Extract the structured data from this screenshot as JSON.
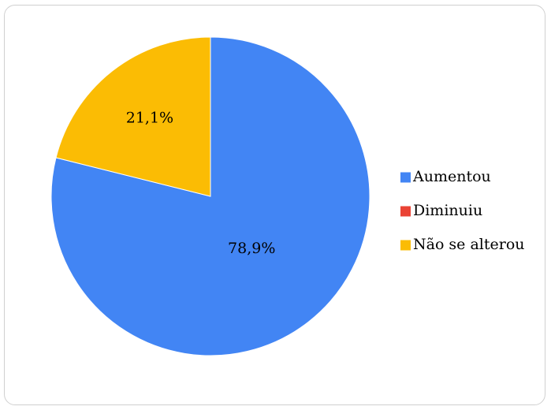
{
  "chart_data": {
    "type": "pie",
    "title": "",
    "start_angle_deg": 0,
    "direction": "clockwise",
    "legend_position": "right",
    "data_labels_shown": true,
    "slices": [
      {
        "label": "Aumentou",
        "value": 78.9,
        "display": "78,9%",
        "color": "#4285F4"
      },
      {
        "label": "Diminuiu",
        "value": 0,
        "display": "",
        "color": "#EA4335"
      },
      {
        "label": "Não se alterou",
        "value": 21.1,
        "display": "21,1%",
        "color": "#FBBC04"
      }
    ]
  }
}
